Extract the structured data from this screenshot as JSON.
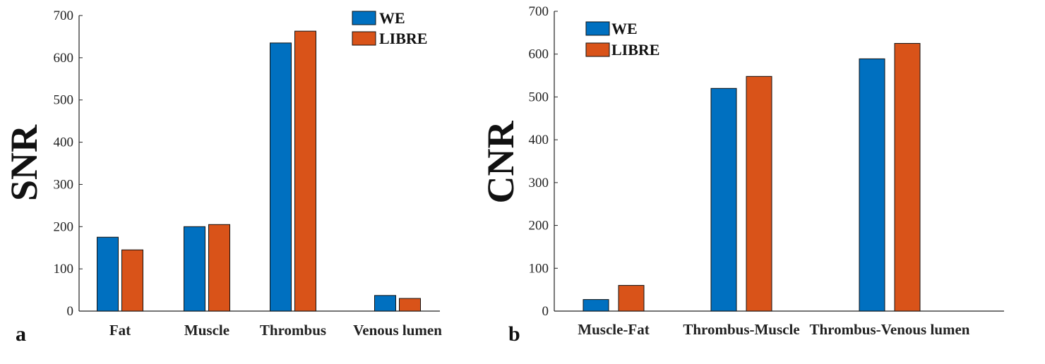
{
  "colors": {
    "we": "#0070c0",
    "libre": "#d95319"
  },
  "chart_data": [
    {
      "type": "bar",
      "panel_label": "a",
      "ylabel": "SNR",
      "xlabel": "",
      "ylim": [
        0,
        700
      ],
      "yticks": [
        0,
        100,
        200,
        300,
        400,
        500,
        600,
        700
      ],
      "categories": [
        "Fat",
        "Muscle",
        "Thrombus",
        "Venous lumen"
      ],
      "series": [
        {
          "name": "WE",
          "values": [
            175,
            200,
            635,
            37
          ]
        },
        {
          "name": "LIBRE",
          "values": [
            145,
            205,
            663,
            30
          ]
        }
      ],
      "legend": "top-right",
      "grid": false
    },
    {
      "type": "bar",
      "panel_label": "b",
      "ylabel": "CNR",
      "xlabel": "",
      "ylim": [
        0,
        700
      ],
      "yticks": [
        0,
        100,
        200,
        300,
        400,
        500,
        600,
        700
      ],
      "categories": [
        "Muscle-Fat",
        "Thrombus-Muscle",
        "Thrombus-Venous lumen"
      ],
      "series": [
        {
          "name": "WE",
          "values": [
            27,
            520,
            589
          ]
        },
        {
          "name": "LIBRE",
          "values": [
            60,
            548,
            625
          ]
        }
      ],
      "legend": "top-left",
      "grid": false
    }
  ]
}
